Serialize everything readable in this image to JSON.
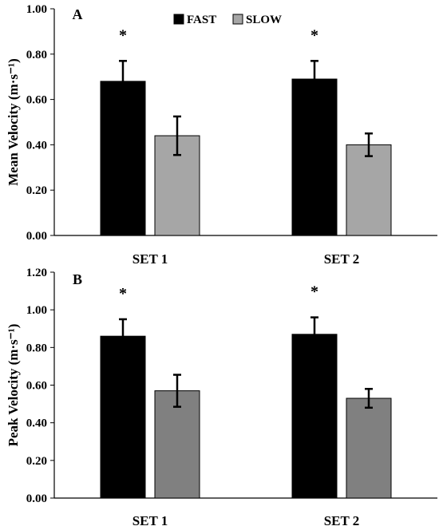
{
  "chart_data": [
    {
      "type": "bar",
      "panel_label": "A",
      "categories": [
        "SET 1",
        "SET 2"
      ],
      "series": [
        {
          "name": "FAST",
          "color": "#000000",
          "values": [
            0.68,
            0.69
          ],
          "errors": [
            0.09,
            0.08
          ]
        },
        {
          "name": "SLOW",
          "color": "#a6a6a6",
          "values": [
            0.44,
            0.4
          ],
          "errors": [
            0.085,
            0.05
          ]
        }
      ],
      "ylabel": "Mean Velocity (m·s⁻¹)",
      "ylim": [
        0,
        1.0
      ],
      "yticks": [
        "0.00",
        "0.20",
        "0.40",
        "0.60",
        "0.80",
        "1.00"
      ],
      "significance": [
        "*",
        "*"
      ],
      "legend": "top-center"
    },
    {
      "type": "bar",
      "panel_label": "B",
      "categories": [
        "SET 1",
        "SET 2"
      ],
      "series": [
        {
          "name": "FAST",
          "color": "#000000",
          "values": [
            0.86,
            0.87
          ],
          "errors": [
            0.09,
            0.09
          ]
        },
        {
          "name": "SLOW",
          "color": "#808080",
          "values": [
            0.57,
            0.53
          ],
          "errors": [
            0.085,
            0.05
          ]
        }
      ],
      "ylabel": "Peak Velocity (m·s⁻¹)",
      "ylim": [
        0,
        1.2
      ],
      "yticks": [
        "0.00",
        "0.20",
        "0.40",
        "0.60",
        "0.80",
        "1.00",
        "1.20"
      ],
      "significance": [
        "*",
        "*"
      ]
    }
  ]
}
